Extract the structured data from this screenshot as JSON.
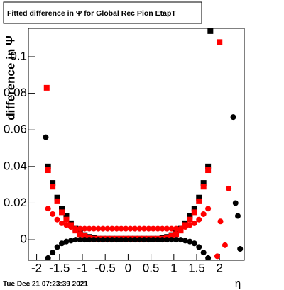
{
  "chart_data": {
    "type": "scatter",
    "title": "Fitted difference in  Ψ  for Global Rec Pion EtapT",
    "y_label": "difference in  Ψ",
    "x_label": "η",
    "timestamp": "Tue Dec 21 07:23:39 2021",
    "xlim": [
      -2.18,
      2.54
    ],
    "ylim": [
      -0.0112,
      0.1155
    ],
    "xticks": [
      -2,
      -1.5,
      -1,
      -0.5,
      0,
      0.5,
      1,
      1.5,
      2
    ],
    "yticks": [
      0,
      0.02,
      0.04,
      0.06,
      0.08,
      0.1
    ],
    "series": [
      {
        "marker": "square",
        "color": "#000000",
        "x": [
          -1.75,
          -1.65,
          -1.55,
          -1.45,
          -1.35,
          -1.25,
          -1.15,
          -1.05,
          -0.95,
          -0.85,
          -0.75,
          -0.65,
          -0.55,
          -0.45,
          -0.35,
          -0.25,
          -0.15,
          -0.05,
          0.05,
          0.15,
          0.25,
          0.35,
          0.45,
          0.55,
          0.65,
          0.75,
          0.85,
          0.95,
          1.05,
          1.15,
          1.25,
          1.35,
          1.45,
          1.55,
          1.65,
          1.75,
          1.8
        ],
        "values": [
          0.04,
          0.031,
          0.023,
          0.017,
          0.013,
          0.009,
          0.006,
          0.004,
          0.0025,
          0.0015,
          0.001,
          0.0005,
          0.0005,
          0.0005,
          0.0005,
          0.0005,
          0.0005,
          0.0005,
          0.0005,
          0.0005,
          0.0005,
          0.0005,
          0.0005,
          0.0005,
          0.0005,
          0.001,
          0.0015,
          0.0025,
          0.004,
          0.006,
          0.009,
          0.013,
          0.017,
          0.023,
          0.031,
          0.04,
          0.114
        ]
      },
      {
        "marker": "square",
        "color": "#ff0000",
        "x": [
          -1.75,
          -1.65,
          -1.55,
          -1.45,
          -1.35,
          -1.25,
          -1.15,
          -1.05,
          -0.95,
          -0.85,
          -0.75,
          -0.65,
          -0.55,
          -0.45,
          -0.35,
          -0.25,
          -0.15,
          -0.05,
          0.05,
          0.15,
          0.25,
          0.35,
          0.45,
          0.55,
          0.65,
          0.75,
          0.85,
          0.95,
          1.05,
          1.15,
          1.25,
          1.35,
          1.45,
          1.55,
          1.65,
          1.75,
          -1.78,
          2.0
        ],
        "values": [
          0.038,
          0.029,
          0.021,
          0.015,
          0.011,
          0.008,
          0.005,
          0.003,
          0.002,
          0.001,
          0.0005,
          0.0005,
          0.0005,
          0.0005,
          0.0005,
          0.0005,
          0.0005,
          0.0005,
          0.0005,
          0.0005,
          0.0005,
          0.0005,
          0.0005,
          0.0005,
          0.0005,
          0.0005,
          0.001,
          0.002,
          0.003,
          0.005,
          0.008,
          0.011,
          0.015,
          0.021,
          0.029,
          0.038,
          0.083,
          0.108
        ]
      },
      {
        "marker": "circle",
        "color": "#ff0000",
        "x": [
          -1.75,
          -1.65,
          -1.55,
          -1.45,
          -1.35,
          -1.25,
          -1.15,
          -1.05,
          -0.95,
          -0.85,
          -0.75,
          -0.65,
          -0.55,
          -0.45,
          -0.35,
          -0.25,
          -0.15,
          -0.05,
          0.05,
          0.15,
          0.25,
          0.35,
          0.45,
          0.55,
          0.65,
          0.75,
          0.85,
          0.95,
          1.05,
          1.15,
          1.25,
          1.35,
          1.45,
          1.55,
          1.65,
          1.75,
          2.2,
          2.02,
          2.12,
          1.95
        ],
        "values": [
          0.017,
          0.014,
          0.011,
          0.009,
          0.008,
          0.007,
          0.006,
          0.006,
          0.006,
          0.006,
          0.006,
          0.006,
          0.006,
          0.006,
          0.006,
          0.006,
          0.006,
          0.006,
          0.006,
          0.006,
          0.006,
          0.006,
          0.006,
          0.006,
          0.006,
          0.006,
          0.006,
          0.006,
          0.006,
          0.006,
          0.007,
          0.008,
          0.009,
          0.011,
          0.014,
          0.017,
          0.028,
          0.01,
          -0.003,
          -0.009
        ]
      },
      {
        "marker": "circle",
        "color": "#000000",
        "x": [
          -1.75,
          -1.65,
          -1.55,
          -1.45,
          -1.35,
          -1.25,
          -1.15,
          -1.05,
          -0.95,
          -0.85,
          -0.75,
          -0.65,
          -0.55,
          -0.45,
          -0.35,
          -0.25,
          -0.15,
          -0.05,
          0.05,
          0.15,
          0.25,
          0.35,
          0.45,
          0.55,
          0.65,
          0.75,
          0.85,
          0.95,
          1.05,
          1.15,
          1.25,
          1.35,
          1.45,
          1.55,
          1.65,
          1.75,
          -1.8,
          2.3,
          2.35,
          2.4,
          2.45
        ],
        "values": [
          -0.01,
          -0.007,
          -0.004,
          -0.002,
          -0.001,
          -0.0005,
          0,
          0,
          0,
          0,
          0,
          0,
          0,
          0,
          0,
          0,
          0,
          0,
          0,
          0,
          0,
          0,
          0,
          0,
          0,
          0,
          0,
          0,
          0,
          0,
          -0.0005,
          -0.001,
          -0.002,
          -0.004,
          -0.007,
          -0.01,
          0.056,
          0.067,
          0.02,
          0.013,
          -0.005
        ]
      }
    ]
  }
}
